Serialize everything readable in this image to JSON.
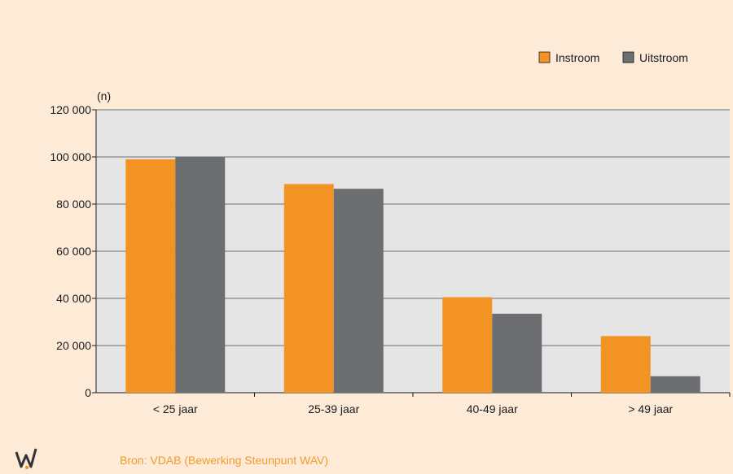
{
  "chart_data": {
    "type": "bar",
    "unit_label": "(n)",
    "categories": [
      "< 25 jaar",
      "25-39 jaar",
      "40-49 jaar",
      "> 49 jaar"
    ],
    "series": [
      {
        "name": "Instroom",
        "color": "#f39324",
        "values": [
          99000,
          88500,
          40500,
          24000
        ]
      },
      {
        "name": "Uitstroom",
        "color": "#6d6e71",
        "values": [
          100000,
          86500,
          33500,
          7000
        ]
      }
    ],
    "ylim": [
      0,
      120000
    ],
    "yticks": [
      0,
      20000,
      40000,
      60000,
      80000,
      100000,
      120000
    ],
    "ytick_labels": [
      "0",
      "20 000",
      "40 000",
      "60 000",
      "80 000",
      "100 000",
      "120 000"
    ],
    "grid": true,
    "legend_position": "top-right"
  },
  "colors": {
    "page_bg": "#fdebd8",
    "plot_bg": "#e5e5e5",
    "gridline": "#6d6e71",
    "source_text": "#f29a2e"
  },
  "footer": {
    "source": "Bron: VDAB (Bewerking Steunpunt WAV)",
    "logo_icon": "wav-logo-icon"
  }
}
